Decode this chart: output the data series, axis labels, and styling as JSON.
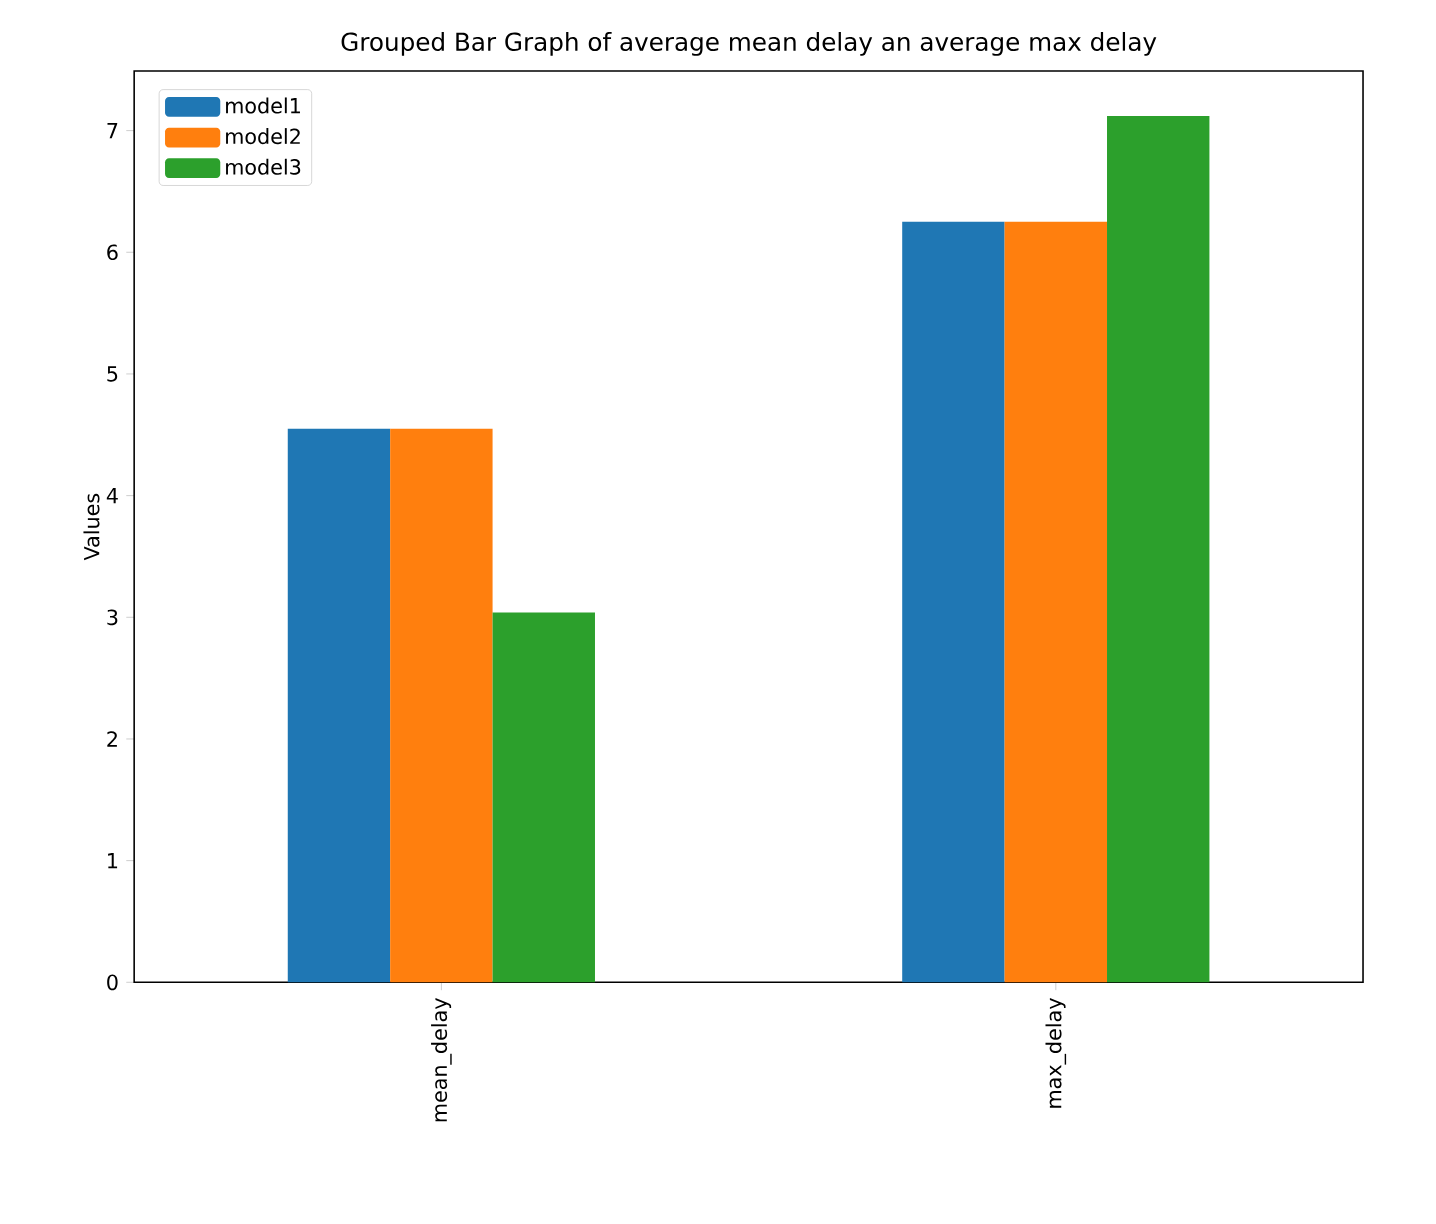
{
  "chart_data": {
    "type": "bar",
    "title": "Grouped Bar Graph of average mean delay an average max delay",
    "ylabel": "Values",
    "categories": [
      "mean_delay",
      "max_delay"
    ],
    "series": [
      {
        "name": "model1",
        "color": "#1f77b4",
        "values": [
          4.55,
          6.25
        ]
      },
      {
        "name": "model2",
        "color": "#ff7f0e",
        "values": [
          4.55,
          6.25
        ]
      },
      {
        "name": "model3",
        "color": "#2ca02c",
        "values": [
          3.04,
          7.12
        ]
      }
    ],
    "ylim": [
      0,
      7.49
    ],
    "yticks": [
      0,
      1,
      2,
      3,
      4,
      5,
      6,
      7
    ],
    "legend": "top left"
  }
}
